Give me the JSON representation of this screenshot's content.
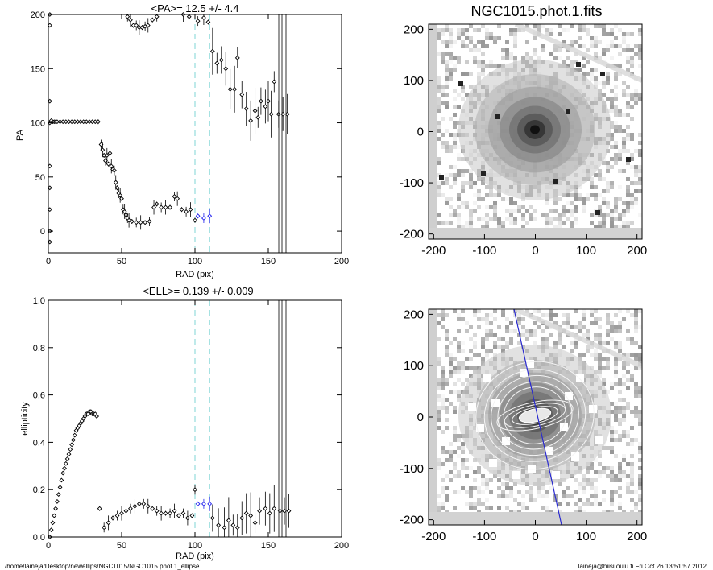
{
  "footer": {
    "path": "/home/laineja/Desktop/newellips/NGC1015/NGC1015.phot.1_ellipse",
    "stamp": "laineja@hiisi.oulu.fi  Fri Oct 26 13:51:57 2012"
  },
  "image_title": "NGC1015.phot.1.fits",
  "chart_data": [
    {
      "type": "scatter",
      "title": "<PA>=  12.5 +/-   4.4",
      "xlabel": "RAD (pix)",
      "ylabel": "PA",
      "xlim": [
        0,
        200
      ],
      "ylim": [
        -20,
        200
      ],
      "xticks": [
        0,
        50,
        100,
        150,
        200
      ],
      "yticks": [
        0,
        50,
        100,
        150,
        200
      ],
      "vlines_dashed": [
        100,
        110
      ],
      "series": [
        {
          "color": "#000000",
          "points": [
            [
              1,
              200
            ],
            [
              1,
              190
            ],
            [
              1,
              120
            ],
            [
              1,
              100
            ],
            [
              1,
              60
            ],
            [
              1,
              40
            ],
            [
              1,
              20
            ],
            [
              1,
              0
            ],
            [
              1,
              -10
            ],
            [
              2,
              102
            ],
            [
              3,
              101
            ],
            [
              4,
              101
            ],
            [
              5,
              101
            ],
            [
              6,
              101
            ],
            [
              8,
              101
            ],
            [
              10,
              101
            ],
            [
              12,
              101
            ],
            [
              14,
              101
            ],
            [
              16,
              101
            ],
            [
              18,
              101
            ],
            [
              20,
              101
            ],
            [
              22,
              101
            ],
            [
              24,
              101
            ],
            [
              26,
              101
            ],
            [
              28,
              101
            ],
            [
              30,
              101
            ],
            [
              32,
              101
            ],
            [
              34,
              101
            ],
            [
              36,
              80
            ],
            [
              37,
              75
            ],
            [
              38,
              70
            ],
            [
              39,
              65
            ],
            [
              40,
              70
            ],
            [
              41,
              62
            ],
            [
              42,
              72
            ],
            [
              43,
              60
            ],
            [
              44,
              57
            ],
            [
              45,
              56
            ],
            [
              46,
              45
            ],
            [
              47,
              40
            ],
            [
              48,
              35
            ],
            [
              49,
              33
            ],
            [
              50,
              30
            ],
            [
              51,
              20
            ],
            [
              52,
              18
            ],
            [
              53,
              15
            ],
            [
              54,
              12
            ],
            [
              55,
              10
            ],
            [
              57,
              9
            ],
            [
              60,
              8
            ],
            [
              63,
              8
            ],
            [
              66,
              8
            ],
            [
              69,
              9
            ],
            [
              72,
              22
            ],
            [
              74,
              25
            ],
            [
              77,
              22
            ],
            [
              80,
              22
            ],
            [
              83,
              22
            ],
            [
              86,
              32
            ],
            [
              88,
              30
            ],
            [
              91,
              20
            ],
            [
              94,
              18
            ],
            [
              97,
              20
            ],
            [
              100,
              10
            ],
            [
              54,
              198
            ],
            [
              56,
              195
            ],
            [
              58,
              190
            ],
            [
              60,
              190
            ],
            [
              62,
              188
            ],
            [
              64,
              188
            ],
            [
              66,
              189
            ],
            [
              68,
              190
            ],
            [
              71,
              195
            ],
            [
              74,
              198
            ],
            [
              92,
              200
            ],
            [
              96,
              198
            ],
            [
              102,
              194
            ],
            [
              106,
              197
            ],
            [
              109,
              193
            ],
            [
              112,
              166
            ],
            [
              115,
              155
            ],
            [
              118,
              158
            ],
            [
              121,
              150
            ],
            [
              124,
              131
            ],
            [
              127,
              131
            ],
            [
              129,
              160
            ],
            [
              132,
              126
            ],
            [
              135,
              113
            ],
            [
              138,
              102
            ],
            [
              141,
              111
            ],
            [
              143,
              105
            ],
            [
              145,
              120
            ],
            [
              148,
              115
            ],
            [
              150,
              120
            ],
            [
              152,
              108
            ],
            [
              154,
              138
            ],
            [
              157,
              108
            ],
            [
              160,
              108
            ],
            [
              163,
              108
            ]
          ]
        },
        {
          "color": "#2222ee",
          "points": [
            [
              102,
              14
            ],
            [
              106,
              12
            ],
            [
              110,
              14
            ]
          ]
        }
      ]
    },
    {
      "type": "scatter",
      "title": "<ELL>= 0.139 +/-  0.009",
      "xlabel": "RAD (pix)",
      "ylabel": "ellipticity",
      "xlim": [
        0,
        200
      ],
      "ylim": [
        0,
        1
      ],
      "xticks": [
        0,
        50,
        100,
        150,
        200
      ],
      "yticks": [
        0.0,
        0.2,
        0.4,
        0.6,
        0.8,
        1.0
      ],
      "vlines_dashed": [
        100,
        110
      ],
      "series": [
        {
          "color": "#000000",
          "points": [
            [
              1,
              0.0
            ],
            [
              2,
              0.03
            ],
            [
              3,
              0.06
            ],
            [
              4,
              0.09
            ],
            [
              5,
              0.12
            ],
            [
              6,
              0.15
            ],
            [
              7,
              0.18
            ],
            [
              8,
              0.21
            ],
            [
              9,
              0.24
            ],
            [
              10,
              0.27
            ],
            [
              11,
              0.29
            ],
            [
              12,
              0.31
            ],
            [
              13,
              0.33
            ],
            [
              14,
              0.35
            ],
            [
              15,
              0.37
            ],
            [
              16,
              0.39
            ],
            [
              17,
              0.41
            ],
            [
              18,
              0.43
            ],
            [
              19,
              0.45
            ],
            [
              20,
              0.46
            ],
            [
              21,
              0.47
            ],
            [
              22,
              0.48
            ],
            [
              23,
              0.49
            ],
            [
              24,
              0.5
            ],
            [
              25,
              0.51
            ],
            [
              26,
              0.52
            ],
            [
              27,
              0.52
            ],
            [
              28,
              0.53
            ],
            [
              29,
              0.53
            ],
            [
              30,
              0.52
            ],
            [
              31,
              0.52
            ],
            [
              32,
              0.52
            ],
            [
              33,
              0.51
            ],
            [
              35,
              0.12
            ],
            [
              38,
              0.04
            ],
            [
              41,
              0.06
            ],
            [
              44,
              0.08
            ],
            [
              47,
              0.09
            ],
            [
              50,
              0.1
            ],
            [
              53,
              0.11
            ],
            [
              56,
              0.12
            ],
            [
              59,
              0.13
            ],
            [
              62,
              0.14
            ],
            [
              65,
              0.14
            ],
            [
              68,
              0.13
            ],
            [
              71,
              0.12
            ],
            [
              74,
              0.11
            ],
            [
              77,
              0.1
            ],
            [
              80,
              0.1
            ],
            [
              83,
              0.1
            ],
            [
              86,
              0.11
            ],
            [
              89,
              0.09
            ],
            [
              92,
              0.1
            ],
            [
              95,
              0.08
            ],
            [
              98,
              0.09
            ],
            [
              100,
              0.2
            ],
            [
              112,
              0.08
            ],
            [
              116,
              0.05
            ],
            [
              120,
              0.04
            ],
            [
              123,
              0.07
            ],
            [
              126,
              0.05
            ],
            [
              129,
              0.04
            ],
            [
              132,
              0.08
            ],
            [
              135,
              0.1
            ],
            [
              138,
              0.09
            ],
            [
              141,
              0.06
            ],
            [
              144,
              0.11
            ],
            [
              148,
              0.12
            ],
            [
              151,
              0.1
            ],
            [
              154,
              0.12
            ],
            [
              158,
              0.11
            ],
            [
              161,
              0.11
            ],
            [
              164,
              0.11
            ]
          ]
        },
        {
          "color": "#2222ee",
          "points": [
            [
              102,
              0.14
            ],
            [
              106,
              0.14
            ],
            [
              110,
              0.14
            ]
          ]
        }
      ]
    },
    {
      "type": "heatmap",
      "xlim": [
        -210,
        210
      ],
      "ylim": [
        -210,
        210
      ],
      "xticks": [
        -200,
        -100,
        0,
        100,
        200
      ],
      "yticks": [
        -200,
        -100,
        0,
        100,
        200
      ]
    },
    {
      "type": "heatmap",
      "xlim": [
        -210,
        210
      ],
      "ylim": [
        -210,
        210
      ],
      "xticks": [
        -200,
        -100,
        0,
        100,
        200
      ],
      "yticks": [
        -200,
        -100,
        0,
        100,
        200
      ]
    }
  ]
}
